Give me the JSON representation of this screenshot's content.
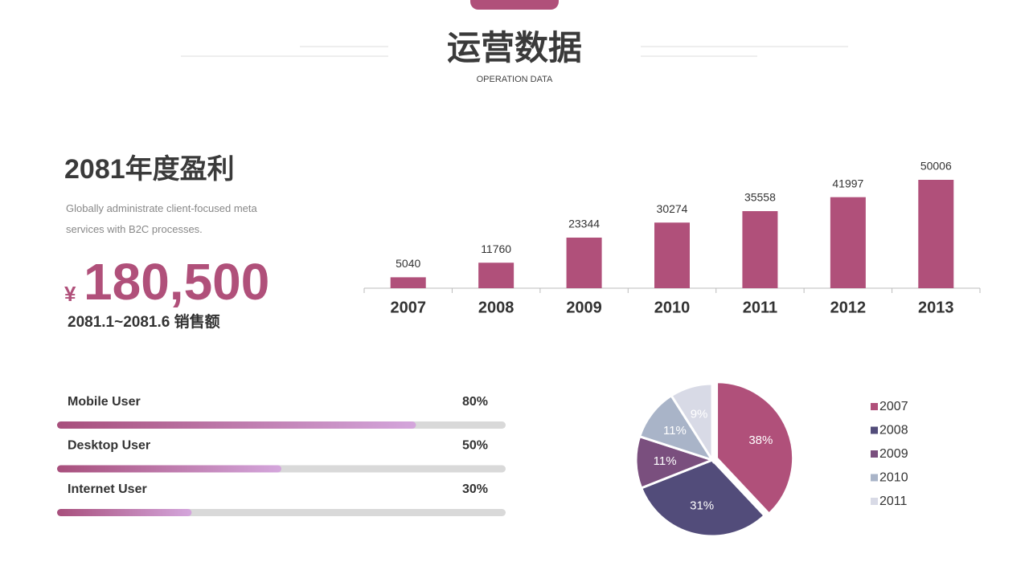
{
  "header": {
    "title": "运营数据",
    "subtitle": "OPERATION DATA"
  },
  "summary": {
    "title": "2081年度盈利",
    "text": "Globally administrate client-focused meta services with B2C processes.",
    "currency": "¥",
    "amount": "180,500",
    "period": "2081.1~2081.6 销售额"
  },
  "chart_data": [
    {
      "type": "bar",
      "categories": [
        "2007",
        "2008",
        "2009",
        "2010",
        "2011",
        "2012",
        "2013"
      ],
      "values": [
        5040,
        11760,
        23344,
        30274,
        35558,
        41997,
        50006
      ],
      "color": "#b0507a"
    },
    {
      "type": "progress",
      "categories": [
        "Mobile User",
        "Desktop User",
        "Internet User"
      ],
      "values": [
        80,
        50,
        30
      ],
      "value_labels": [
        "80%",
        "50%",
        "30%"
      ],
      "xlim": [
        0,
        100
      ],
      "color": [
        "#a84f7c",
        "#d4a6dc"
      ],
      "track_color": "#d9d9d9"
    },
    {
      "type": "pie",
      "categories": [
        "2007",
        "2008",
        "2009",
        "2010",
        "2011"
      ],
      "values": [
        38,
        31,
        11,
        11,
        9
      ],
      "value_labels": [
        "38%",
        "31%",
        "11%",
        "11%",
        "9%"
      ],
      "colors": [
        "#b0507a",
        "#524c7a",
        "#7a4f7e",
        "#a9b4c8",
        "#d8dae6"
      ],
      "legend": "right"
    }
  ]
}
